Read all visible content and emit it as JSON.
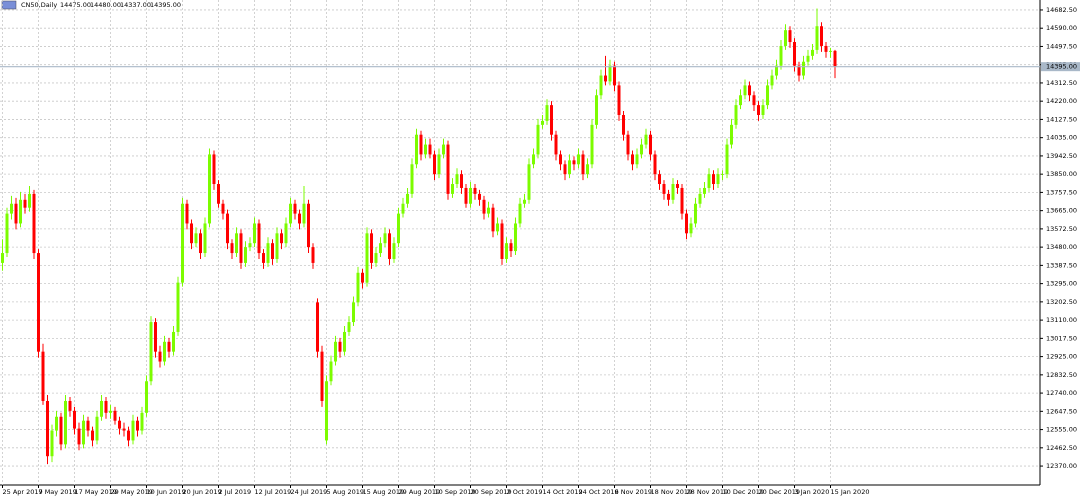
{
  "chart_data": {
    "type": "candlestick",
    "header": {
      "title": "CN50,Daily",
      "quote_labels": [
        "14475.00",
        "14480.00",
        "14337.00",
        "14395.00"
      ]
    },
    "up_color": "#7cfc00",
    "down_color": "#ff0000",
    "grid": true,
    "last_price": {
      "value": 14395,
      "label": "14395.00"
    },
    "ylim": [
      12274,
      14733
    ],
    "yticks": [
      {
        "value": 12370,
        "label": "12370.00"
      },
      {
        "value": 12462.5,
        "label": "12462.50"
      },
      {
        "value": 12555,
        "label": "12555.00"
      },
      {
        "value": 12647.5,
        "label": "12647.50"
      },
      {
        "value": 12740,
        "label": "12740.00"
      },
      {
        "value": 12832.5,
        "label": "12832.50"
      },
      {
        "value": 12925,
        "label": "12925.00"
      },
      {
        "value": 13017.5,
        "label": "13017.50"
      },
      {
        "value": 13110,
        "label": "13110.00"
      },
      {
        "value": 13202.5,
        "label": "13202.50"
      },
      {
        "value": 13295,
        "label": "13295.00"
      },
      {
        "value": 13387.5,
        "label": "13387.50"
      },
      {
        "value": 13480,
        "label": "13480.00"
      },
      {
        "value": 13572.5,
        "label": "13572.50"
      },
      {
        "value": 13665,
        "label": "13665.00"
      },
      {
        "value": 13757.5,
        "label": "13757.50"
      },
      {
        "value": 13850,
        "label": "13850.00"
      },
      {
        "value": 13942.5,
        "label": "13942.50"
      },
      {
        "value": 14035,
        "label": "14035.00"
      },
      {
        "value": 14127.5,
        "label": "14127.50"
      },
      {
        "value": 14220,
        "label": "14220.00"
      },
      {
        "value": 14312.5,
        "label": "14312.50"
      },
      {
        "value": 14405,
        "label": "14405.00"
      },
      {
        "value": 14497.5,
        "label": "14497.50"
      },
      {
        "value": 14590,
        "label": "14590.00"
      },
      {
        "value": 14682.5,
        "label": "14682.50"
      }
    ],
    "categories": [
      "25 Apr 2019",
      null,
      null,
      null,
      null,
      null,
      null,
      null,
      "7 May 2019",
      null,
      null,
      null,
      null,
      null,
      null,
      null,
      "17 May 2019",
      null,
      null,
      null,
      null,
      null,
      null,
      null,
      "29 May 2019",
      null,
      null,
      null,
      null,
      null,
      null,
      null,
      "10 Jun 2019",
      null,
      null,
      null,
      null,
      null,
      null,
      null,
      "20 Jun 2019",
      null,
      null,
      null,
      null,
      null,
      null,
      null,
      "2 Jul 2019",
      null,
      null,
      null,
      null,
      null,
      null,
      null,
      "12 Jul 2019",
      null,
      null,
      null,
      null,
      null,
      null,
      null,
      "24 Jul 2019",
      null,
      null,
      null,
      null,
      null,
      null,
      null,
      "5 Aug 2019",
      null,
      null,
      null,
      null,
      null,
      null,
      null,
      "15 Aug 2019",
      null,
      null,
      null,
      null,
      null,
      null,
      null,
      "29 Aug 2019",
      null,
      null,
      null,
      null,
      null,
      null,
      null,
      "10 Sep 2019",
      null,
      null,
      null,
      null,
      null,
      null,
      null,
      "20 Sep 2019",
      null,
      null,
      null,
      null,
      null,
      null,
      null,
      "2 Oct 2019",
      null,
      null,
      null,
      null,
      null,
      null,
      null,
      "14 Oct 2019",
      null,
      null,
      null,
      null,
      null,
      null,
      null,
      "24 Oct 2019",
      null,
      null,
      null,
      null,
      null,
      null,
      null,
      "6 Nov 2019",
      null,
      null,
      null,
      null,
      null,
      null,
      null,
      "18 Nov 2019",
      null,
      null,
      null,
      null,
      null,
      null,
      null,
      "28 Nov 2019",
      null,
      null,
      null,
      null,
      null,
      null,
      null,
      "10 Dec 2019",
      null,
      null,
      null,
      null,
      null,
      null,
      null,
      "20 Dec 2019",
      null,
      null,
      null,
      null,
      null,
      null,
      null,
      "3 Jan 2020",
      null,
      null,
      null,
      null,
      null,
      null,
      null,
      "15 Jan 2020",
      null
    ],
    "ohlc": [
      [
        13400,
        13520,
        13360,
        13450
      ],
      [
        13450,
        13680,
        13430,
        13650
      ],
      [
        13650,
        13740,
        13620,
        13700
      ],
      [
        13700,
        13730,
        13570,
        13600
      ],
      [
        13600,
        13760,
        13580,
        13720
      ],
      [
        13720,
        13750,
        13650,
        13680
      ],
      [
        13680,
        13790,
        13660,
        13750
      ],
      [
        13750,
        13770,
        13420,
        13450
      ],
      [
        13450,
        13470,
        12920,
        12950
      ],
      [
        12950,
        12990,
        12680,
        12700
      ],
      [
        12700,
        12730,
        12380,
        12420
      ],
      [
        12420,
        12580,
        12390,
        12550
      ],
      [
        12550,
        12650,
        12520,
        12620
      ],
      [
        12620,
        12640,
        12450,
        12480
      ],
      [
        12480,
        12730,
        12460,
        12700
      ],
      [
        12700,
        12720,
        12620,
        12650
      ],
      [
        12650,
        12670,
        12530,
        12560
      ],
      [
        12560,
        12590,
        12450,
        12480
      ],
      [
        12480,
        12630,
        12460,
        12600
      ],
      [
        12600,
        12620,
        12520,
        12550
      ],
      [
        12550,
        12570,
        12470,
        12500
      ],
      [
        12500,
        12650,
        12480,
        12620
      ],
      [
        12620,
        12730,
        12600,
        12700
      ],
      [
        12700,
        12720,
        12610,
        12640
      ],
      [
        12640,
        12680,
        12610,
        12650
      ],
      [
        12650,
        12670,
        12580,
        12600
      ],
      [
        12600,
        12620,
        12530,
        12560
      ],
      [
        12560,
        12590,
        12520,
        12550
      ],
      [
        12550,
        12570,
        12470,
        12500
      ],
      [
        12500,
        12630,
        12480,
        12600
      ],
      [
        12600,
        12620,
        12520,
        12550
      ],
      [
        12550,
        12670,
        12530,
        12640
      ],
      [
        12640,
        12830,
        12620,
        12800
      ],
      [
        12800,
        13130,
        12780,
        13100
      ],
      [
        13100,
        13120,
        12920,
        12950
      ],
      [
        12950,
        12980,
        12870,
        12900
      ],
      [
        12900,
        13030,
        12880,
        13000
      ],
      [
        13000,
        13020,
        12920,
        12950
      ],
      [
        12950,
        13080,
        12930,
        13050
      ],
      [
        13050,
        13330,
        13030,
        13300
      ],
      [
        13300,
        13730,
        13280,
        13700
      ],
      [
        13700,
        13720,
        13570,
        13600
      ],
      [
        13600,
        13620,
        13470,
        13500
      ],
      [
        13500,
        13580,
        13480,
        13550
      ],
      [
        13550,
        13570,
        13420,
        13450
      ],
      [
        13450,
        13630,
        13430,
        13600
      ],
      [
        13600,
        13980,
        13580,
        13950
      ],
      [
        13950,
        13970,
        13770,
        13800
      ],
      [
        13800,
        13820,
        13680,
        13700
      ],
      [
        13700,
        13720,
        13620,
        13650
      ],
      [
        13650,
        13670,
        13470,
        13500
      ],
      [
        13500,
        13520,
        13420,
        13450
      ],
      [
        13450,
        13580,
        13430,
        13550
      ],
      [
        13550,
        13570,
        13370,
        13400
      ],
      [
        13400,
        13510,
        13380,
        13480
      ],
      [
        13480,
        13530,
        13460,
        13500
      ],
      [
        13500,
        13630,
        13480,
        13600
      ],
      [
        13600,
        13620,
        13420,
        13450
      ],
      [
        13450,
        13470,
        13370,
        13400
      ],
      [
        13400,
        13530,
        13380,
        13500
      ],
      [
        13500,
        13520,
        13390,
        13420
      ],
      [
        13420,
        13580,
        13400,
        13550
      ],
      [
        13550,
        13570,
        13470,
        13500
      ],
      [
        13500,
        13630,
        13480,
        13600
      ],
      [
        13600,
        13730,
        13580,
        13700
      ],
      [
        13700,
        13720,
        13620,
        13650
      ],
      [
        13650,
        13670,
        13570,
        13600
      ],
      [
        13600,
        13790,
        13580,
        13700
      ],
      [
        13700,
        13720,
        13450,
        13480
      ],
      [
        13480,
        13500,
        13370,
        13400
      ],
      [
        13200,
        13220,
        12920,
        12950
      ],
      [
        12950,
        12980,
        12670,
        12700
      ],
      [
        12500,
        12830,
        12480,
        12800
      ],
      [
        12800,
        12930,
        12780,
        12900
      ],
      [
        12900,
        13030,
        12880,
        13000
      ],
      [
        13000,
        13020,
        12920,
        12950
      ],
      [
        12950,
        13080,
        12930,
        13050
      ],
      [
        13050,
        13130,
        13030,
        13100
      ],
      [
        13100,
        13230,
        13080,
        13200
      ],
      [
        13200,
        13380,
        13180,
        13350
      ],
      [
        13350,
        13370,
        13270,
        13300
      ],
      [
        13300,
        13580,
        13280,
        13550
      ],
      [
        13550,
        13570,
        13370,
        13400
      ],
      [
        13400,
        13480,
        13380,
        13450
      ],
      [
        13450,
        13530,
        13430,
        13500
      ],
      [
        13500,
        13580,
        13480,
        13550
      ],
      [
        13550,
        13570,
        13390,
        13420
      ],
      [
        13420,
        13530,
        13400,
        13500
      ],
      [
        13500,
        13680,
        13480,
        13650
      ],
      [
        13650,
        13730,
        13630,
        13700
      ],
      [
        13700,
        13780,
        13680,
        13750
      ],
      [
        13750,
        13930,
        13730,
        13900
      ],
      [
        13900,
        14080,
        13880,
        14050
      ],
      [
        14050,
        14070,
        13920,
        13950
      ],
      [
        13950,
        14030,
        13930,
        14000
      ],
      [
        14000,
        14030,
        13930,
        13950
      ],
      [
        13950,
        13970,
        13820,
        13850
      ],
      [
        13850,
        13980,
        13830,
        13950
      ],
      [
        13950,
        14030,
        13930,
        14000
      ],
      [
        14000,
        14020,
        13720,
        13750
      ],
      [
        13750,
        13830,
        13730,
        13800
      ],
      [
        13800,
        13880,
        13780,
        13850
      ],
      [
        13850,
        13870,
        13750,
        13780
      ],
      [
        13780,
        13800,
        13680,
        13700
      ],
      [
        13700,
        13810,
        13680,
        13780
      ],
      [
        13780,
        13800,
        13720,
        13750
      ],
      [
        13750,
        13770,
        13690,
        13720
      ],
      [
        13720,
        13740,
        13620,
        13650
      ],
      [
        13650,
        13710,
        13630,
        13680
      ],
      [
        13680,
        13700,
        13530,
        13560
      ],
      [
        13560,
        13630,
        13540,
        13600
      ],
      [
        13600,
        13620,
        13390,
        13420
      ],
      [
        13420,
        13530,
        13400,
        13500
      ],
      [
        13500,
        13520,
        13430,
        13460
      ],
      [
        13460,
        13630,
        13440,
        13600
      ],
      [
        13600,
        13730,
        13580,
        13700
      ],
      [
        13700,
        13750,
        13680,
        13720
      ],
      [
        13720,
        13930,
        13700,
        13900
      ],
      [
        13900,
        13980,
        13880,
        13950
      ],
      [
        13950,
        14130,
        13930,
        14100
      ],
      [
        14100,
        14150,
        14080,
        14120
      ],
      [
        14120,
        14230,
        14100,
        14200
      ],
      [
        14200,
        14220,
        14020,
        14050
      ],
      [
        14050,
        14070,
        13920,
        13950
      ],
      [
        13950,
        13970,
        13870,
        13900
      ],
      [
        13900,
        13920,
        13820,
        13850
      ],
      [
        13850,
        13950,
        13830,
        13920
      ],
      [
        13920,
        13940,
        13870,
        13900
      ],
      [
        13900,
        13980,
        13880,
        13950
      ],
      [
        13950,
        13970,
        13820,
        13850
      ],
      [
        13850,
        13930,
        13830,
        13900
      ],
      [
        13900,
        14130,
        13880,
        14100
      ],
      [
        14100,
        14280,
        14080,
        14250
      ],
      [
        14250,
        14380,
        14230,
        14350
      ],
      [
        14350,
        14450,
        14300,
        14320
      ],
      [
        14320,
        14430,
        14300,
        14400
      ],
      [
        14400,
        14420,
        14270,
        14300
      ],
      [
        14300,
        14320,
        14120,
        14150
      ],
      [
        14150,
        14170,
        14020,
        14050
      ],
      [
        14050,
        14070,
        13920,
        13950
      ],
      [
        13950,
        13970,
        13870,
        13900
      ],
      [
        13900,
        13980,
        13880,
        13950
      ],
      [
        13950,
        14030,
        13930,
        14000
      ],
      [
        14000,
        14080,
        13980,
        14050
      ],
      [
        14050,
        14070,
        13920,
        13950
      ],
      [
        13950,
        13970,
        13820,
        13850
      ],
      [
        13850,
        13870,
        13770,
        13800
      ],
      [
        13800,
        13820,
        13720,
        13750
      ],
      [
        13750,
        13770,
        13690,
        13720
      ],
      [
        13720,
        13830,
        13700,
        13800
      ],
      [
        13800,
        13820,
        13750,
        13780
      ],
      [
        13780,
        13800,
        13620,
        13650
      ],
      [
        13650,
        13670,
        13520,
        13550
      ],
      [
        13550,
        13630,
        13530,
        13600
      ],
      [
        13600,
        13730,
        13580,
        13700
      ],
      [
        13700,
        13780,
        13680,
        13750
      ],
      [
        13750,
        13810,
        13730,
        13780
      ],
      [
        13780,
        13880,
        13760,
        13850
      ],
      [
        13850,
        13870,
        13770,
        13800
      ],
      [
        13800,
        13880,
        13780,
        13850
      ],
      [
        13850,
        13870,
        13820,
        13850
      ],
      [
        13850,
        14030,
        13830,
        14000
      ],
      [
        14000,
        14130,
        13980,
        14100
      ],
      [
        14100,
        14230,
        14080,
        14200
      ],
      [
        14200,
        14280,
        14180,
        14250
      ],
      [
        14250,
        14330,
        14230,
        14300
      ],
      [
        14300,
        14320,
        14220,
        14250
      ],
      [
        14250,
        14270,
        14170,
        14200
      ],
      [
        14200,
        14220,
        14120,
        14150
      ],
      [
        14150,
        14230,
        14130,
        14200
      ],
      [
        14200,
        14330,
        14180,
        14300
      ],
      [
        14300,
        14380,
        14280,
        14350
      ],
      [
        14350,
        14430,
        14330,
        14400
      ],
      [
        14400,
        14530,
        14380,
        14500
      ],
      [
        14500,
        14610,
        14480,
        14580
      ],
      [
        14580,
        14600,
        14490,
        14520
      ],
      [
        14520,
        14540,
        14370,
        14400
      ],
      [
        14400,
        14420,
        14320,
        14350
      ],
      [
        14350,
        14450,
        14330,
        14420
      ],
      [
        14420,
        14480,
        14400,
        14450
      ],
      [
        14450,
        14510,
        14430,
        14480
      ],
      [
        14480,
        14690,
        14460,
        14600
      ],
      [
        14600,
        14620,
        14470,
        14500
      ],
      [
        14500,
        14520,
        14440,
        14470
      ],
      [
        14470,
        14490,
        14440,
        14475
      ],
      [
        14475,
        14480,
        14337,
        14395
      ]
    ]
  }
}
